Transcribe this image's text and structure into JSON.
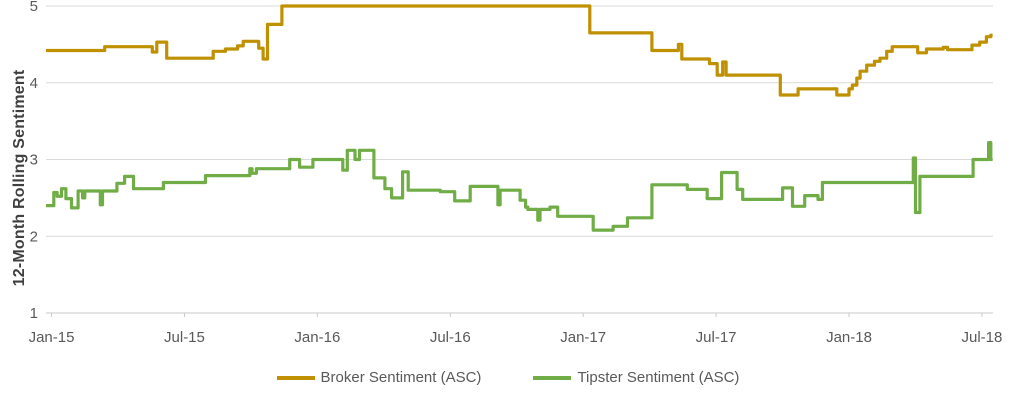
{
  "chart_data": {
    "type": "line",
    "step": true,
    "title": "",
    "xlabel": "",
    "ylabel": "12-Month Rolling Sentiment",
    "ylim": [
      1,
      5
    ],
    "yticks": [
      1,
      2,
      3,
      4,
      5
    ],
    "y_tick_labels": [
      "1",
      "2",
      "3",
      "4",
      "5"
    ],
    "x_unit": "months since Jan-15",
    "xlim": [
      -0.25,
      42.5
    ],
    "x_end": 42.48,
    "grid": "horizontal",
    "legend_position": "bottom-center",
    "xticks": [
      {
        "m": 0,
        "label": "Jan-15"
      },
      {
        "m": 6,
        "label": "Jul-15"
      },
      {
        "m": 12,
        "label": "Jan-16"
      },
      {
        "m": 18,
        "label": "Jul-16"
      },
      {
        "m": 24,
        "label": "Jan-17"
      },
      {
        "m": 30,
        "label": "Jul-17"
      },
      {
        "m": 36,
        "label": "Jan-18"
      },
      {
        "m": 42,
        "label": "Jul-18"
      }
    ],
    "series": [
      {
        "name": "Broker Sentiment (ASC)",
        "color": "#BF9000",
        "points": [
          [
            -0.25,
            4.42
          ],
          [
            2.4,
            4.47
          ],
          [
            4.55,
            4.4
          ],
          [
            4.75,
            4.53
          ],
          [
            5.2,
            4.32
          ],
          [
            7.3,
            4.41
          ],
          [
            7.85,
            4.44
          ],
          [
            8.4,
            4.48
          ],
          [
            8.65,
            4.54
          ],
          [
            9.35,
            4.45
          ],
          [
            9.55,
            4.31
          ],
          [
            9.75,
            4.76
          ],
          [
            10.4,
            5.0
          ],
          [
            24.3,
            4.65
          ],
          [
            27.1,
            4.42
          ],
          [
            28.3,
            4.5
          ],
          [
            28.45,
            4.31
          ],
          [
            29.7,
            4.25
          ],
          [
            30.05,
            4.1
          ],
          [
            30.3,
            4.27
          ],
          [
            30.45,
            4.1
          ],
          [
            32.9,
            3.84
          ],
          [
            33.7,
            3.92
          ],
          [
            35.45,
            3.84
          ],
          [
            36.0,
            3.92
          ],
          [
            36.15,
            3.97
          ],
          [
            36.35,
            4.06
          ],
          [
            36.5,
            4.15
          ],
          [
            36.8,
            4.23
          ],
          [
            37.15,
            4.28
          ],
          [
            37.4,
            4.32
          ],
          [
            37.7,
            4.41
          ],
          [
            37.95,
            4.47
          ],
          [
            39.1,
            4.39
          ],
          [
            39.5,
            4.44
          ],
          [
            40.25,
            4.46
          ],
          [
            40.45,
            4.43
          ],
          [
            41.55,
            4.49
          ],
          [
            41.9,
            4.53
          ],
          [
            42.2,
            4.6
          ],
          [
            42.4,
            4.62
          ]
        ]
      },
      {
        "name": "Tipster Sentiment (ASC)",
        "color": "#70AD47",
        "points": [
          [
            -0.25,
            2.4
          ],
          [
            0.1,
            2.57
          ],
          [
            0.25,
            2.52
          ],
          [
            0.45,
            2.62
          ],
          [
            0.65,
            2.49
          ],
          [
            0.9,
            2.37
          ],
          [
            1.2,
            2.59
          ],
          [
            1.4,
            2.5
          ],
          [
            1.5,
            2.59
          ],
          [
            2.2,
            2.41
          ],
          [
            2.3,
            2.59
          ],
          [
            2.95,
            2.69
          ],
          [
            3.3,
            2.78
          ],
          [
            3.7,
            2.62
          ],
          [
            5.05,
            2.7
          ],
          [
            6.95,
            2.79
          ],
          [
            8.95,
            2.88
          ],
          [
            9.05,
            2.82
          ],
          [
            9.25,
            2.88
          ],
          [
            10.75,
            3.0
          ],
          [
            11.2,
            2.9
          ],
          [
            11.8,
            3.0
          ],
          [
            13.15,
            2.86
          ],
          [
            13.35,
            3.12
          ],
          [
            13.7,
            3.0
          ],
          [
            13.9,
            3.12
          ],
          [
            14.55,
            2.76
          ],
          [
            15.05,
            2.62
          ],
          [
            15.35,
            2.5
          ],
          [
            15.85,
            2.84
          ],
          [
            16.1,
            2.6
          ],
          [
            17.55,
            2.58
          ],
          [
            18.2,
            2.46
          ],
          [
            18.9,
            2.65
          ],
          [
            20.15,
            2.41
          ],
          [
            20.25,
            2.6
          ],
          [
            21.15,
            2.47
          ],
          [
            21.4,
            2.38
          ],
          [
            21.5,
            2.35
          ],
          [
            21.95,
            2.21
          ],
          [
            22.05,
            2.35
          ],
          [
            22.5,
            2.38
          ],
          [
            22.85,
            2.26
          ],
          [
            24.45,
            2.08
          ],
          [
            25.35,
            2.13
          ],
          [
            26.0,
            2.24
          ],
          [
            27.1,
            2.67
          ],
          [
            28.7,
            2.61
          ],
          [
            29.6,
            2.49
          ],
          [
            30.25,
            2.83
          ],
          [
            30.95,
            2.61
          ],
          [
            31.2,
            2.48
          ],
          [
            33.0,
            2.63
          ],
          [
            33.45,
            2.39
          ],
          [
            34.0,
            2.53
          ],
          [
            34.6,
            2.48
          ],
          [
            34.8,
            2.7
          ],
          [
            38.9,
            3.02
          ],
          [
            39.0,
            2.31
          ],
          [
            39.2,
            2.78
          ],
          [
            41.6,
            3.0
          ],
          [
            42.3,
            3.22
          ],
          [
            42.4,
            3.0
          ]
        ]
      }
    ]
  },
  "colors": {
    "background": "#FFFFFF",
    "gridline": "#D9D9D9",
    "axis_line": "#C9C9C9",
    "axis_text": "#595959",
    "axis_title_text": "#3F3F3F"
  }
}
